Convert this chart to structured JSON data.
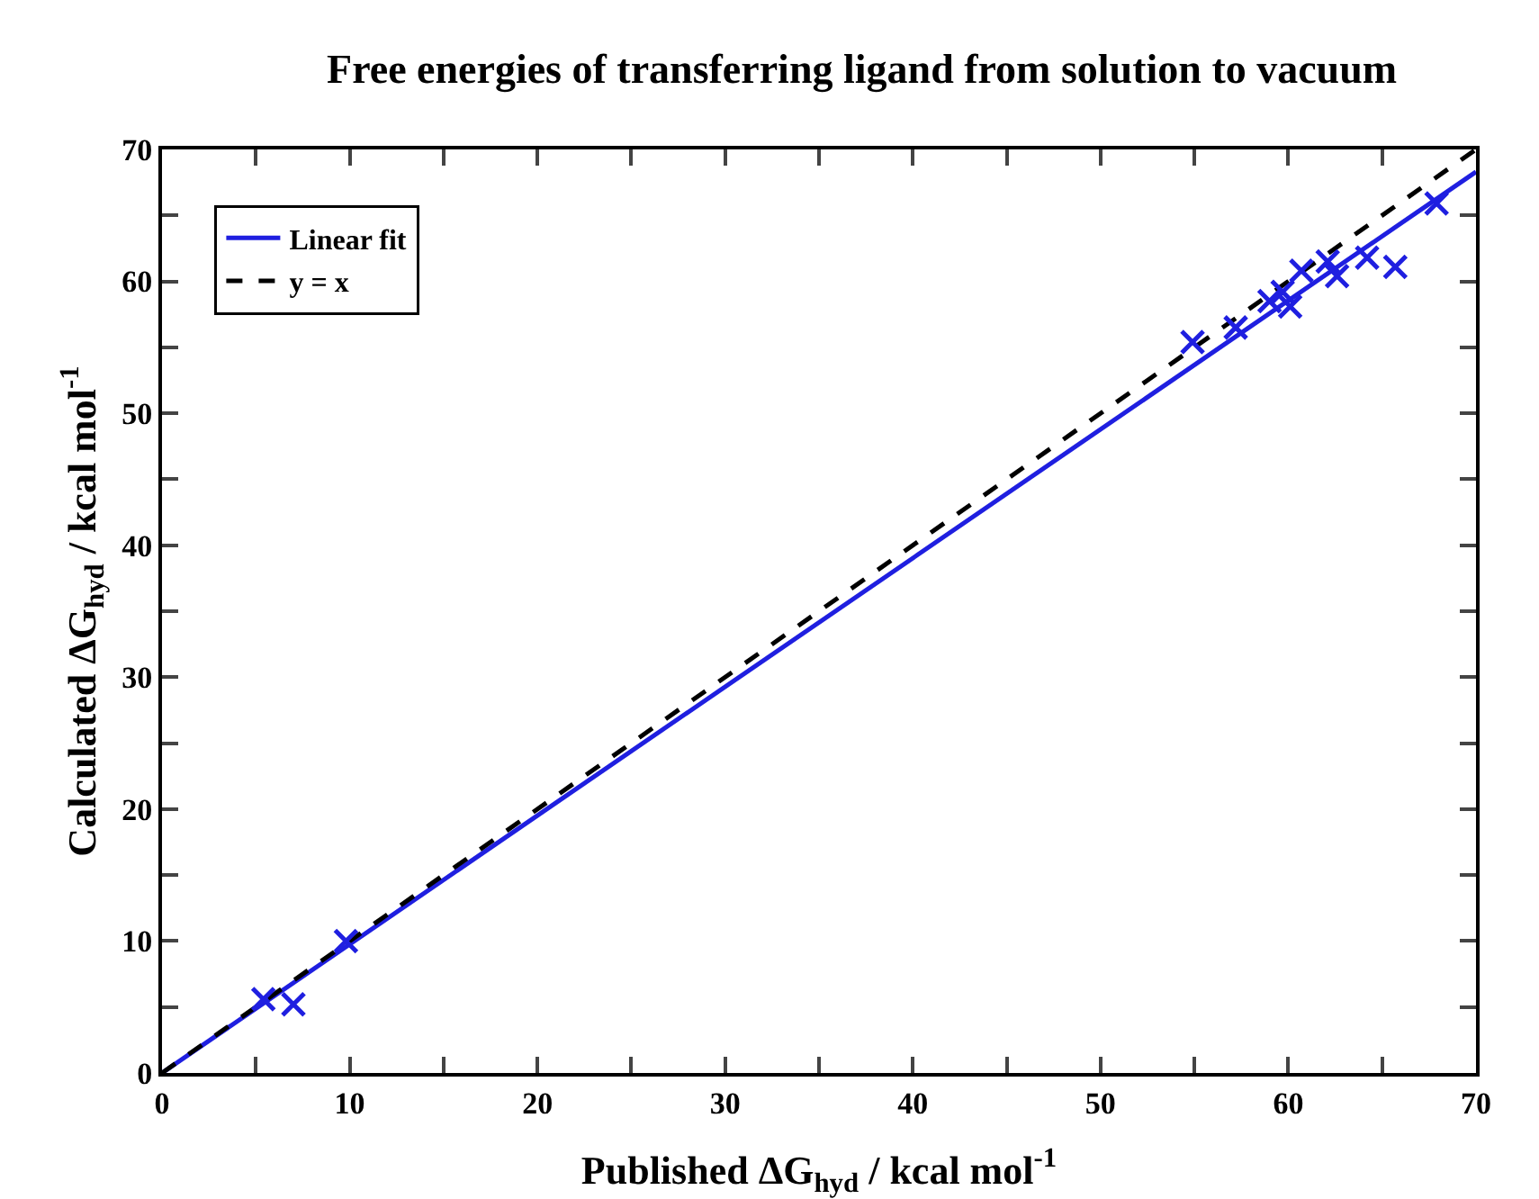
{
  "chart_data": {
    "type": "scatter",
    "title": "Free energies of transferring ligand from solution to vacuum",
    "xlabel": "Published ΔG$_{hyd}$ / kcal mol$^{-1}$",
    "ylabel": "Calculated ΔG$_{hyd}$ / kcal mol$^{-1}$",
    "xlim": [
      0,
      70
    ],
    "ylim": [
      0,
      70
    ],
    "xticks": [
      0,
      {
        "value": 5,
        "label": null
      },
      10,
      {
        "value": 15,
        "label": null
      },
      20,
      {
        "value": 25,
        "label": null
      },
      30,
      {
        "value": 35,
        "label": null
      },
      40,
      {
        "value": 45,
        "label": null
      },
      50,
      {
        "value": 55,
        "label": null
      },
      60,
      {
        "value": 65,
        "label": null
      },
      70
    ],
    "yticks": [
      0,
      {
        "value": 5,
        "label": null
      },
      10,
      {
        "value": 15,
        "label": null
      },
      20,
      {
        "value": 25,
        "label": null
      },
      30,
      {
        "value": 35,
        "label": null
      },
      40,
      {
        "value": 45,
        "label": null
      },
      50,
      {
        "value": 55,
        "label": null
      },
      60,
      {
        "value": 65,
        "label": null
      },
      70
    ],
    "grid": false,
    "legend": "top left",
    "series": [
      {
        "color": "#1f1fe0",
        "marker": "cross",
        "x": [
          5.4,
          7.0,
          9.8,
          54.9,
          57.2,
          59.0,
          59.7,
          60.1,
          60.7,
          62.1,
          62.6,
          64.2,
          65.7,
          67.9
        ],
        "values": [
          5.6,
          5.2,
          10.0,
          55.4,
          56.5,
          58.5,
          59.2,
          58.1,
          60.8,
          61.5,
          60.4,
          61.8,
          61.1,
          65.9
        ]
      },
      {
        "type": "line",
        "name": "Linear fit",
        "color": "#1f1fe0",
        "line_style": "solid",
        "marker": "none",
        "x": [
          0,
          70
        ],
        "values": [
          0,
          68.3
        ]
      },
      {
        "type": "line",
        "name": "y = x",
        "color": "#000000",
        "line_style": "dashed",
        "marker": "none",
        "x": [
          0,
          70
        ],
        "values": [
          0,
          70
        ]
      }
    ]
  }
}
